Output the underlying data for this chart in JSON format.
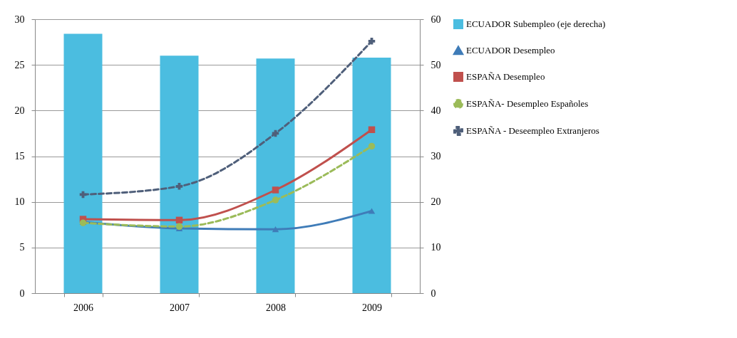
{
  "chart_data": {
    "type": "line",
    "categories": [
      "2006",
      "2007",
      "2008",
      "2009"
    ],
    "series": [
      {
        "name": "ECUADOR Subempleo (eje derecha)",
        "type": "bar",
        "axis": "y2",
        "color": "#4bbde0",
        "values": [
          56.8,
          52,
          51.4,
          51.6
        ]
      },
      {
        "name": "ECUADOR Desempleo",
        "color": "#3f7cb8",
        "marker": "triangle",
        "line_style": "solid",
        "values": [
          7.8,
          7.1,
          7.0,
          9.0
        ]
      },
      {
        "name": "ESPAÑA Desempleo",
        "color": "#c0504d",
        "marker": "square",
        "line_style": "solid",
        "values": [
          8.1,
          8.0,
          11.3,
          17.9
        ]
      },
      {
        "name": "ESPAÑA- Desempleo Españoles",
        "color": "#9bbb59",
        "marker": "circle",
        "line_style": "dashed",
        "values": [
          7.7,
          7.3,
          10.2,
          16.1
        ]
      },
      {
        "name": "ESPAÑA - Deseempleo Extranjeros",
        "color": "#4f5f7a",
        "marker": "cross",
        "line_style": "dashed",
        "values": [
          10.8,
          11.7,
          17.5,
          27.6
        ]
      }
    ],
    "ylim": [
      0,
      30
    ],
    "yticks": [
      0,
      5,
      10,
      15,
      20,
      25,
      30
    ],
    "y2lim": [
      0,
      60
    ],
    "y2ticks": [
      0,
      10,
      20,
      30,
      40,
      50,
      60
    ],
    "grid": "y",
    "legend": "right"
  }
}
